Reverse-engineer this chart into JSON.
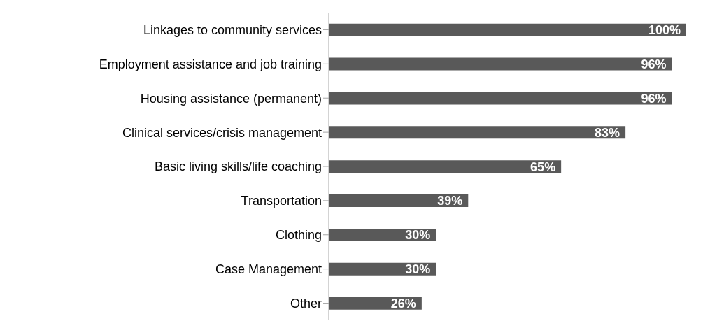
{
  "chart_data": {
    "type": "bar",
    "orientation": "horizontal",
    "categories": [
      "Linkages to community services",
      "Employment assistance and job training",
      "Housing assistance (permanent)",
      "Clinical services/crisis management",
      "Basic living skills/life coaching",
      "Transportation",
      "Clothing",
      "Case Management",
      "Other"
    ],
    "values": [
      100,
      96,
      96,
      83,
      65,
      39,
      30,
      30,
      26
    ],
    "value_labels": [
      "100%",
      "96%",
      "96%",
      "83%",
      "65%",
      "39%",
      "30%",
      "30%",
      "26%"
    ],
    "color": "#595959"
  }
}
